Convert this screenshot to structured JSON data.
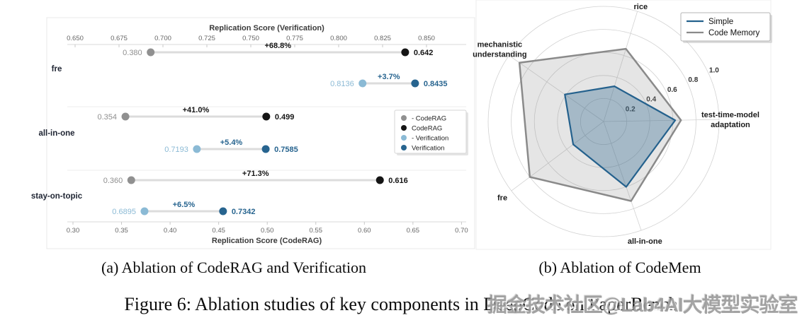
{
  "figure": {
    "caption_a": "(a) Ablation of CodeRAG and Verification",
    "caption_b": "(b) Ablation of CodeMem",
    "caption_main": "Figure 6: Ablation studies of key components in DeepCode on PaperBench",
    "watermark": "掘金技术社区@Lab4AI大模型实验室"
  },
  "colors": {
    "gray_dot": "#909090",
    "black_dot": "#151515",
    "light_blue": "#8bbad5",
    "dark_blue": "#27648f",
    "connector": "#dcdcdc",
    "axis_line": "#d8d8d8",
    "grid": "#ececec",
    "radar_grid": "#d2d2d2",
    "radar_gray": "#8a8a8a",
    "radar_blue": "#24618d"
  },
  "chart_data": [
    {
      "type": "dumbbell",
      "panel": "a",
      "top_axis": {
        "label": "Replication Score (Verification)",
        "min": 0.65,
        "ticks": [
          "0.650",
          "0.675",
          "0.700",
          "0.725",
          "0.750",
          "0.775",
          "0.800",
          "0.825",
          "0.850"
        ]
      },
      "bottom_axis": {
        "label": "Replication Score (CodeRAG)",
        "min": 0.3,
        "ticks": [
          "0.30",
          "0.35",
          "0.40",
          "0.45",
          "0.50",
          "0.55",
          "0.60",
          "0.65",
          "0.70"
        ]
      },
      "categories": [
        "fre",
        "all-in-one",
        "stay-on-topic"
      ],
      "rows": [
        {
          "category": "fre",
          "coderag": {
            "without": 0.38,
            "with": 0.642,
            "without_label": "0.380",
            "with_label": "0.642",
            "delta": "+68.8%"
          },
          "verification": {
            "without": 0.8136,
            "with": 0.8435,
            "without_label": "0.8136",
            "with_label": "0.8435",
            "delta": "+3.7%"
          }
        },
        {
          "category": "all-in-one",
          "coderag": {
            "without": 0.354,
            "with": 0.499,
            "without_label": "0.354",
            "with_label": "0.499",
            "delta": "+41.0%"
          },
          "verification": {
            "without": 0.7193,
            "with": 0.7585,
            "without_label": "0.7193",
            "with_label": "0.7585",
            "delta": "+5.4%"
          }
        },
        {
          "category": "stay-on-topic",
          "coderag": {
            "without": 0.36,
            "with": 0.616,
            "without_label": "0.360",
            "with_label": "0.616",
            "delta": "+71.3%"
          },
          "verification": {
            "without": 0.6895,
            "with": 0.7342,
            "without_label": "0.6895",
            "with_label": "0.7342",
            "delta": "+6.5%"
          }
        }
      ],
      "legend": [
        {
          "label": "- CodeRAG",
          "color": "#909090"
        },
        {
          "label": "CodeRAG",
          "color": "#151515"
        },
        {
          "label": "- Verification",
          "color": "#8bbad5"
        },
        {
          "label": "Verification",
          "color": "#27648f"
        }
      ]
    },
    {
      "type": "radar",
      "panel": "b",
      "axes": [
        "rice",
        "test-time-model adaptation",
        "all-in-one",
        "fre",
        "mechanistic understanding"
      ],
      "tick_labels": [
        "0.2",
        "0.4",
        "0.6",
        "0.8",
        "1.0"
      ],
      "range": [
        0,
        1.0
      ],
      "legend_position": "top-right",
      "series": [
        {
          "name": "Simple",
          "color": "#24618d",
          "values": [
            0.32,
            0.62,
            0.6,
            0.33,
            0.41
          ]
        },
        {
          "name": "Code Memory",
          "color": "#8a8a8a",
          "values": [
            0.66,
            0.67,
            0.73,
            0.8,
            0.89
          ]
        }
      ]
    }
  ]
}
